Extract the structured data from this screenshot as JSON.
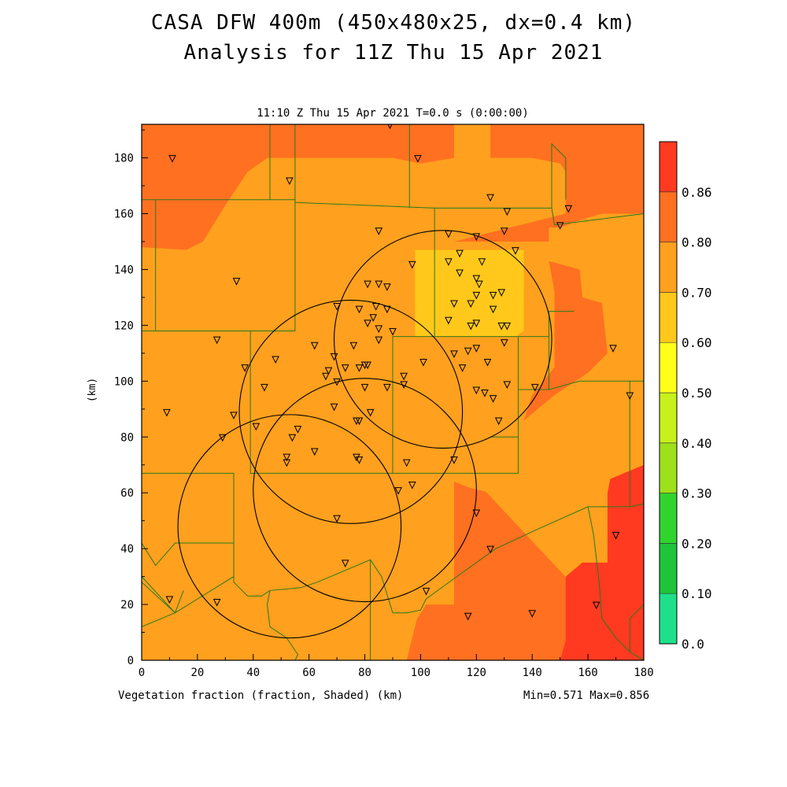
{
  "title_line1": "CASA DFW 400m (450x480x25, dx=0.4 km)",
  "title_line2": "Analysis for 11Z Thu 15 Apr 2021",
  "subtitle": "11:10 Z Thu 15 Apr 2021   T=0.0 s (0:00:00)",
  "x_axis": {
    "unit_label": "(km)",
    "ticks": [
      0,
      20,
      40,
      60,
      80,
      100,
      120,
      140,
      160,
      180
    ]
  },
  "y_axis": {
    "unit_label": "(km)",
    "ticks": [
      0,
      20,
      40,
      60,
      80,
      100,
      120,
      140,
      160,
      180
    ]
  },
  "field_label": "Vegetation fraction (fraction, Shaded)",
  "stats": "Min=0.571 Max=0.856",
  "colorbar": {
    "levels": [
      "0.0",
      "0.10",
      "0.20",
      "0.30",
      "0.40",
      "0.50",
      "0.60",
      "0.70",
      "0.80",
      "0.86"
    ],
    "colors": [
      "#1fe08a",
      "#1fc43a",
      "#2fd42f",
      "#9ee01a",
      "#c8f01a",
      "#ffff1a",
      "#ffc81a",
      "#ffa01e",
      "#ff7020",
      "#ff3a20"
    ]
  },
  "field_colors": {
    "c060": "#ffc81a",
    "c070": "#ffa01e",
    "c080": "#ff7020",
    "c086": "#ff3a20"
  },
  "radar_rings": [
    {
      "x": 108,
      "y": 115,
      "r": 39
    },
    {
      "x": 75,
      "y": 89,
      "r": 40
    },
    {
      "x": 80,
      "y": 61,
      "r": 40
    },
    {
      "x": 53,
      "y": 48,
      "r": 40
    }
  ],
  "stations": [
    [
      11,
      180
    ],
    [
      99,
      180
    ],
    [
      89,
      192
    ],
    [
      53,
      172
    ],
    [
      125,
      166
    ],
    [
      131,
      161
    ],
    [
      153,
      162
    ],
    [
      150,
      156
    ],
    [
      85,
      154
    ],
    [
      120,
      152
    ],
    [
      130,
      154
    ],
    [
      110,
      153
    ],
    [
      114,
      146
    ],
    [
      122,
      143
    ],
    [
      134,
      147
    ],
    [
      110,
      143
    ],
    [
      97,
      142
    ],
    [
      114,
      139
    ],
    [
      120,
      137
    ],
    [
      121,
      135
    ],
    [
      126,
      131
    ],
    [
      34,
      136
    ],
    [
      81,
      135
    ],
    [
      85,
      135
    ],
    [
      88,
      134
    ],
    [
      129,
      132
    ],
    [
      120,
      131
    ],
    [
      112,
      128
    ],
    [
      118,
      128
    ],
    [
      126,
      126
    ],
    [
      70,
      127
    ],
    [
      78,
      126
    ],
    [
      84,
      127
    ],
    [
      88,
      126
    ],
    [
      83,
      123
    ],
    [
      81,
      121
    ],
    [
      85,
      119
    ],
    [
      90,
      118
    ],
    [
      110,
      122
    ],
    [
      120,
      121
    ],
    [
      118,
      120
    ],
    [
      129,
      120
    ],
    [
      131,
      120
    ],
    [
      27,
      115
    ],
    [
      37,
      105
    ],
    [
      62,
      113
    ],
    [
      76,
      113
    ],
    [
      85,
      115
    ],
    [
      130,
      114
    ],
    [
      120,
      112
    ],
    [
      117,
      111
    ],
    [
      112,
      110
    ],
    [
      48,
      108
    ],
    [
      69,
      109
    ],
    [
      73,
      105
    ],
    [
      78,
      105
    ],
    [
      80,
      106
    ],
    [
      81,
      106
    ],
    [
      67,
      104
    ],
    [
      66,
      102
    ],
    [
      70,
      100
    ],
    [
      44,
      98
    ],
    [
      101,
      107
    ],
    [
      124,
      107
    ],
    [
      115,
      105
    ],
    [
      94,
      102
    ],
    [
      94,
      99
    ],
    [
      88,
      98
    ],
    [
      80,
      98
    ],
    [
      126,
      94
    ],
    [
      123,
      96
    ],
    [
      120,
      97
    ],
    [
      131,
      99
    ],
    [
      141,
      98
    ],
    [
      175,
      95
    ],
    [
      169,
      112
    ],
    [
      9,
      89
    ],
    [
      33,
      88
    ],
    [
      69,
      91
    ],
    [
      82,
      89
    ],
    [
      78,
      86
    ],
    [
      77,
      86
    ],
    [
      41,
      84
    ],
    [
      29,
      80
    ],
    [
      54,
      80
    ],
    [
      56,
      83
    ],
    [
      62,
      75
    ],
    [
      77,
      73
    ],
    [
      78,
      72
    ],
    [
      52,
      73
    ],
    [
      52,
      71
    ],
    [
      95,
      71
    ],
    [
      112,
      72
    ],
    [
      128,
      86
    ],
    [
      97,
      63
    ],
    [
      92,
      61
    ],
    [
      120,
      53
    ],
    [
      70,
      51
    ],
    [
      125,
      40
    ],
    [
      170,
      45
    ],
    [
      73,
      35
    ],
    [
      102,
      25
    ],
    [
      10,
      22
    ],
    [
      27,
      21
    ],
    [
      117,
      16
    ],
    [
      140,
      17
    ],
    [
      163,
      20
    ]
  ]
}
